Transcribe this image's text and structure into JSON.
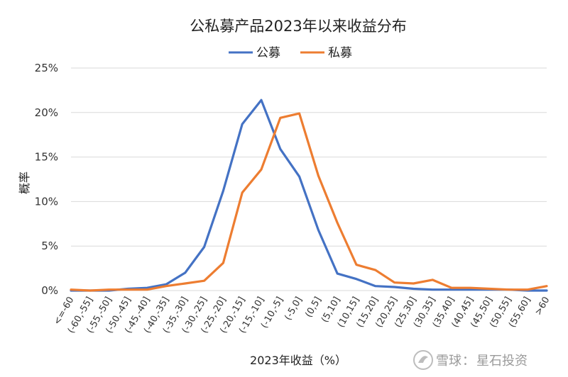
{
  "chart_data": {
    "type": "line",
    "title": "公私募产品2023年以来收益分布",
    "xlabel": "2023年收益（%）",
    "ylabel": "概率",
    "ylim": [
      0,
      25
    ],
    "yticks": [
      "0%",
      "5%",
      "10%",
      "15%",
      "20%",
      "25%"
    ],
    "grid": true,
    "legend_position": "top",
    "categories": [
      "<=-60",
      "(-60,-55]",
      "(-55,-50]",
      "(-50,-45]",
      "(-45,-40]",
      "(-40,-35]",
      "(-35,-30]",
      "(-30,-25]",
      "(-25,-20]",
      "(-20,-15]",
      "(-15,-10]",
      "(-10,-5]",
      "(-5,0]",
      "(0,5]",
      "(5,10]",
      "(10,15]",
      "(15,20]",
      "(20,25]",
      "(25,30]",
      "(30,35]",
      "(35,40]",
      "(40,45]",
      "(45,50]",
      "(50,55]",
      "(55,60]",
      ">60"
    ],
    "series": [
      {
        "name": "公募",
        "color": "#4472C4",
        "values": [
          0.0,
          0.0,
          0.0,
          0.2,
          0.3,
          0.7,
          2.0,
          4.9,
          11.2,
          18.7,
          21.4,
          15.9,
          12.8,
          6.8,
          1.9,
          1.3,
          0.5,
          0.4,
          0.2,
          0.1,
          0.1,
          0.1,
          0.1,
          0.1,
          0.0,
          0.0
        ]
      },
      {
        "name": "私募",
        "color": "#ED7D31",
        "values": [
          0.1,
          0.0,
          0.1,
          0.1,
          0.1,
          0.5,
          0.8,
          1.1,
          3.1,
          11.0,
          13.6,
          19.4,
          19.9,
          12.9,
          7.6,
          2.9,
          2.3,
          0.9,
          0.8,
          1.2,
          0.3,
          0.3,
          0.2,
          0.1,
          0.1,
          0.5
        ]
      }
    ]
  },
  "watermark": {
    "brand": "雪球",
    "separator": "：",
    "author": "星石投资"
  }
}
